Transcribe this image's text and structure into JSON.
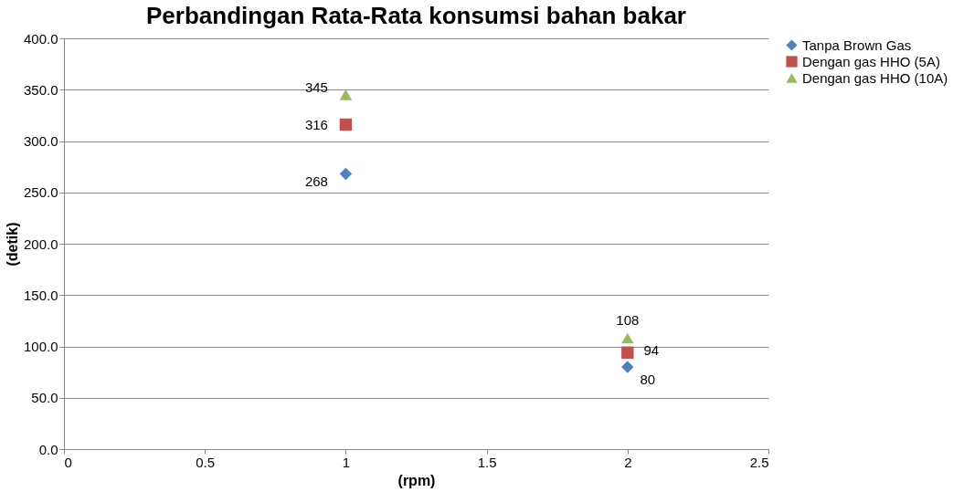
{
  "chart_data": {
    "type": "scatter",
    "title": "Perbandingan Rata-Rata konsumsi bahan bakar",
    "xlabel": "(rpm)",
    "ylabel": "(detik)",
    "x": [
      1,
      2
    ],
    "series": [
      {
        "name": "Tanpa Brown Gas",
        "color": "#4f81bd",
        "marker": "diamond",
        "values": [
          268,
          80
        ]
      },
      {
        "name": "Dengan gas HHO (5A)",
        "color": "#c0504d",
        "marker": "square",
        "values": [
          316,
          94
        ]
      },
      {
        "name": "Dengan gas HHO (10A)",
        "color": "#9bbb59",
        "marker": "triangle",
        "values": [
          345,
          108
        ]
      }
    ],
    "xlim": [
      0,
      2.5
    ],
    "xticks": [
      0,
      0.5,
      1,
      1.5,
      2,
      2.5
    ],
    "ylim": [
      0,
      400
    ],
    "yticks": [
      {
        "value": 0,
        "label": "0.0"
      },
      {
        "value": 50,
        "label": "50.0"
      },
      {
        "value": 100,
        "label": "100.0"
      },
      {
        "value": 150,
        "label": "150.0"
      },
      {
        "value": 200,
        "label": "200.0"
      },
      {
        "value": 250,
        "label": "250.0"
      },
      {
        "value": 300,
        "label": "300.0"
      },
      {
        "value": 350,
        "label": "350.0"
      },
      {
        "value": 400,
        "label": "400.0"
      }
    ],
    "grid": "y",
    "legend": "right",
    "data_labels": true
  }
}
